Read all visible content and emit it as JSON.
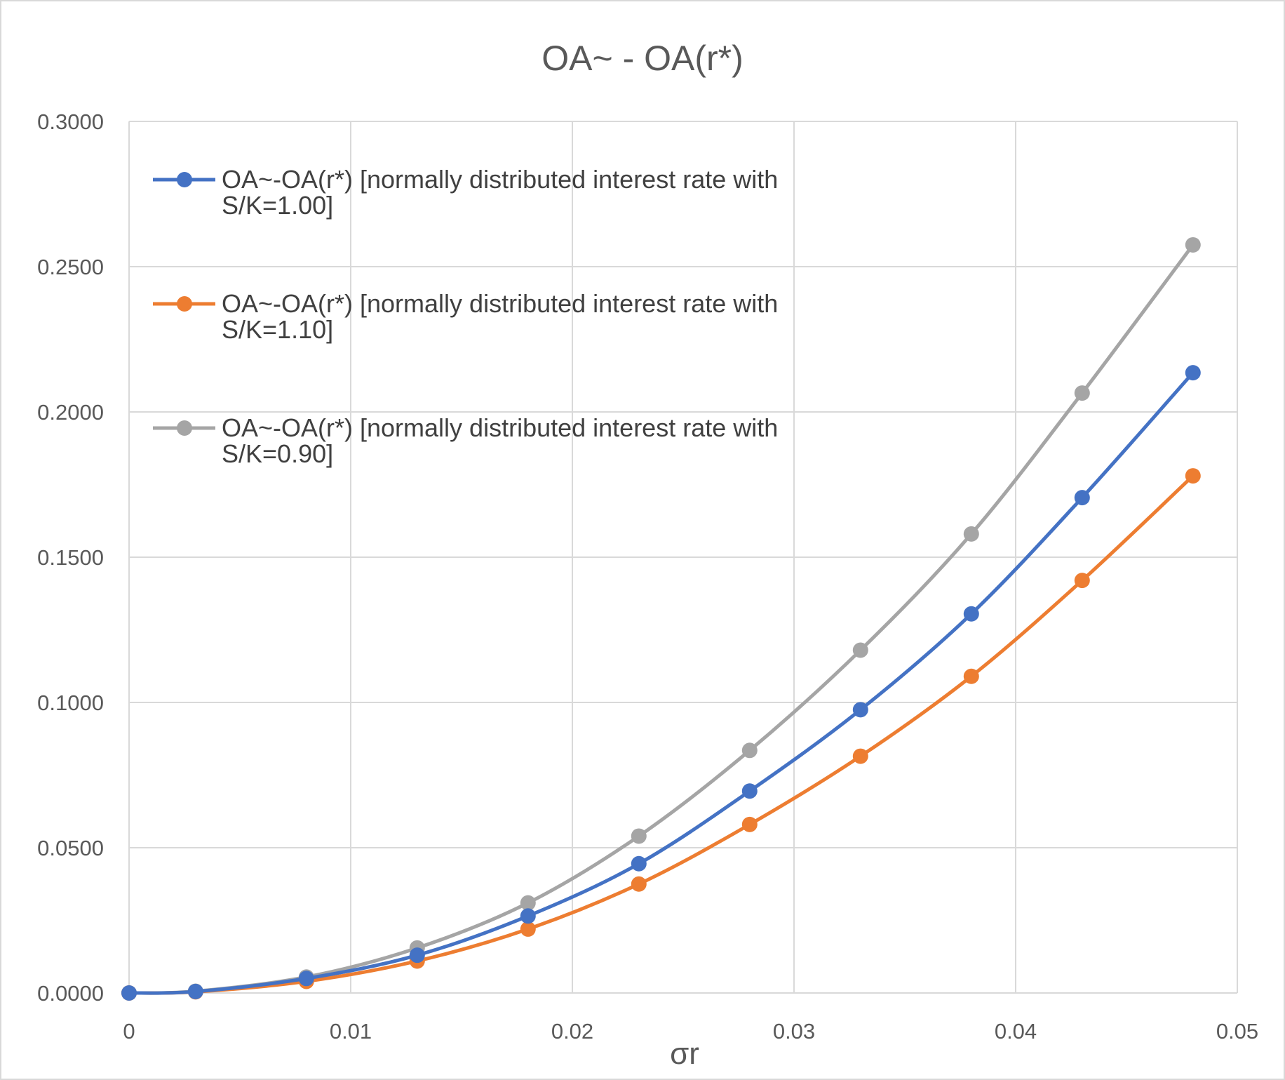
{
  "chart_data": {
    "type": "line",
    "title": "OA~ - OA(r*)",
    "xlabel": "σr",
    "ylabel": "",
    "xlim": [
      0,
      0.05
    ],
    "ylim": [
      0,
      0.3
    ],
    "x_ticks": [
      "0",
      "0.01",
      "0.02",
      "0.03",
      "0.04",
      "0.05"
    ],
    "y_ticks": [
      "0.0000",
      "0.0500",
      "0.1000",
      "0.1500",
      "0.2000",
      "0.2500",
      "0.3000"
    ],
    "x_tick_values": [
      0,
      0.01,
      0.02,
      0.03,
      0.04,
      0.05
    ],
    "y_tick_values": [
      0,
      0.05,
      0.1,
      0.15,
      0.2,
      0.25,
      0.3
    ],
    "grid": true,
    "legend_position": "top-left",
    "x": [
      0,
      0.003,
      0.008,
      0.013,
      0.018,
      0.023,
      0.028,
      0.033,
      0.038,
      0.043,
      0.048
    ],
    "series": [
      {
        "name_line1": "OA~-OA(r*) [normally distributed interest rate with",
        "name_line2": "S/K=1.00]",
        "color": "#4472C4",
        "values": [
          0.0,
          0.0005,
          0.005,
          0.013,
          0.0265,
          0.0445,
          0.0695,
          0.0975,
          0.1305,
          0.1705,
          0.2135
        ]
      },
      {
        "name_line1": "OA~-OA(r*) [normally distributed interest rate with",
        "name_line2": "S/K=1.10]",
        "color": "#ED7D31",
        "values": [
          0.0,
          0.0004,
          0.004,
          0.011,
          0.022,
          0.0375,
          0.058,
          0.0815,
          0.109,
          0.142,
          0.178
        ]
      },
      {
        "name_line1": "OA~-OA(r*) [normally distributed interest rate with",
        "name_line2": "S/K=0.90]",
        "color": "#A5A5A5",
        "values": [
          0.0,
          0.0006,
          0.0055,
          0.0155,
          0.031,
          0.054,
          0.0835,
          0.118,
          0.158,
          0.2065,
          0.2575
        ]
      }
    ]
  }
}
